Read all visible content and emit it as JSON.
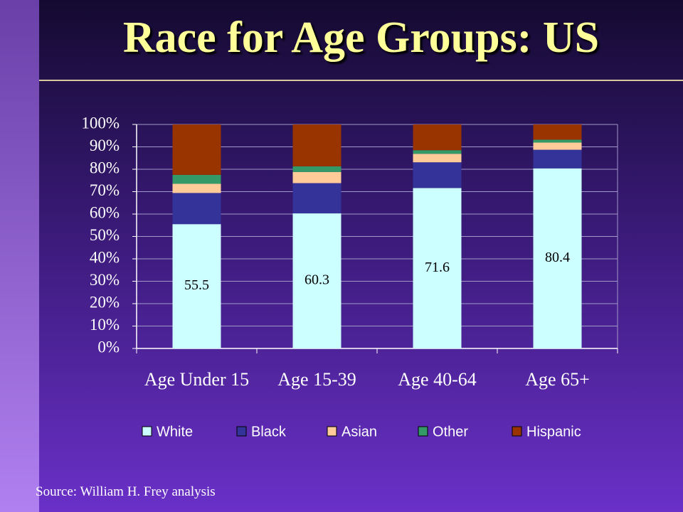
{
  "chart_data": {
    "type": "stacked_bar_100",
    "title": "Race for Age Groups: US",
    "source": "Source: William H. Frey analysis",
    "categories": [
      "Age Under 15",
      "Age 15-39",
      "Age 40-64",
      "Age 65+"
    ],
    "series": [
      {
        "name": "White",
        "color": "#ccffff",
        "values": [
          55.5,
          60.3,
          71.6,
          80.4
        ],
        "labels": true
      },
      {
        "name": "Black",
        "color": "#333399",
        "values": [
          13.9,
          13.5,
          11.5,
          8.3
        ]
      },
      {
        "name": "Asian",
        "color": "#ffcc99",
        "values": [
          4.1,
          5.0,
          3.8,
          3.2
        ]
      },
      {
        "name": "Other",
        "color": "#339966",
        "values": [
          4.0,
          2.5,
          1.6,
          1.3
        ]
      },
      {
        "name": "Hispanic",
        "color": "#993300",
        "values": [
          22.5,
          18.7,
          11.5,
          6.8
        ]
      }
    ],
    "ylim": [
      0,
      100
    ],
    "yticks": [
      {
        "value": 0,
        "label": "0%"
      },
      {
        "value": 10,
        "label": "10%"
      },
      {
        "value": 20,
        "label": "20%"
      },
      {
        "value": 30,
        "label": "30%"
      },
      {
        "value": 40,
        "label": "40%"
      },
      {
        "value": 50,
        "label": "50%"
      },
      {
        "value": 60,
        "label": "60%"
      },
      {
        "value": 70,
        "label": "70%"
      },
      {
        "value": 80,
        "label": "80%"
      },
      {
        "value": 90,
        "label": "90%"
      },
      {
        "value": 100,
        "label": "100%"
      }
    ],
    "grid": true,
    "legend": "bottom"
  }
}
